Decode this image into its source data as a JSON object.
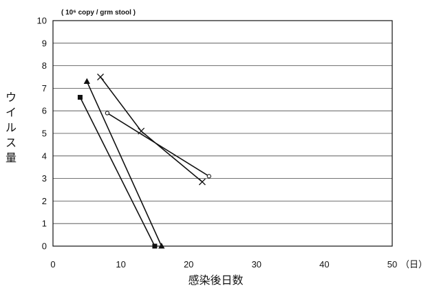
{
  "chart_data": {
    "type": "line",
    "unit_label": "( 10⁶ copy / grm stool )",
    "ylabel": "ウイルス量",
    "xlabel": "感染後日数",
    "x_unit": "（日）",
    "xlim": [
      0,
      50
    ],
    "ylim": [
      0,
      10
    ],
    "x_ticks": [
      0,
      10,
      20,
      30,
      40,
      50
    ],
    "y_ticks": [
      0,
      1,
      2,
      3,
      4,
      5,
      6,
      7,
      8,
      9,
      10
    ],
    "grid": true,
    "legend": "none",
    "series": [
      {
        "marker": "square",
        "points": [
          [
            4,
            6.6
          ],
          [
            15,
            0
          ]
        ]
      },
      {
        "marker": "triangle",
        "points": [
          [
            5,
            7.3
          ],
          [
            16,
            0
          ]
        ]
      },
      {
        "marker": "x",
        "points": [
          [
            7,
            7.5
          ],
          [
            13,
            5.1
          ],
          [
            22,
            2.85
          ]
        ]
      },
      {
        "marker": "circle",
        "points": [
          [
            8,
            5.9
          ],
          [
            23,
            3.1
          ]
        ]
      }
    ]
  }
}
